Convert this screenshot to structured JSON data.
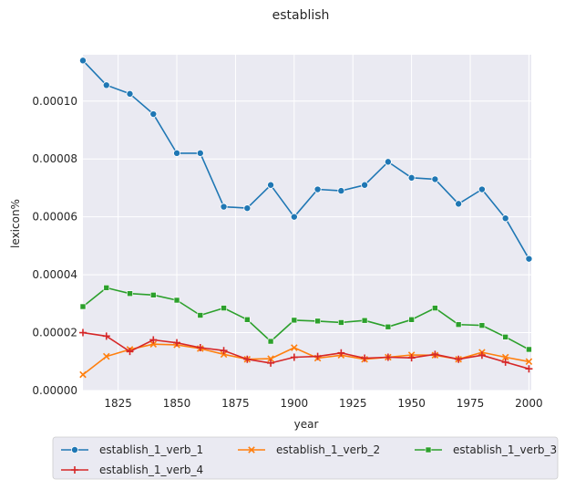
{
  "chart_data": {
    "type": "line",
    "title": "establish",
    "xlabel": "year",
    "ylabel": "lexicon%",
    "xlim": [
      1810,
      2001
    ],
    "ylim": [
      0,
      0.000116
    ],
    "xticks": [
      1825,
      1850,
      1875,
      1900,
      1925,
      1950,
      1975,
      2000
    ],
    "yticks": [
      0,
      2e-05,
      4e-05,
      6e-05,
      8e-05,
      0.0001
    ],
    "ytick_labels": [
      "0.00000",
      "0.00002",
      "0.00004",
      "0.00006",
      "0.00008",
      "0.00010"
    ],
    "x": [
      1810,
      1820,
      1830,
      1840,
      1850,
      1860,
      1870,
      1880,
      1890,
      1900,
      1910,
      1920,
      1930,
      1940,
      1950,
      1960,
      1970,
      1980,
      1990,
      2000
    ],
    "grid": true,
    "legend_position": "bottom",
    "series": [
      {
        "name": "establish_1_verb_1",
        "color": "#1f77b4",
        "marker": "circle",
        "values": [
          0.000114,
          0.0001055,
          0.0001025,
          9.55e-05,
          8.2e-05,
          8.2e-05,
          6.35e-05,
          6.3e-05,
          7.1e-05,
          6e-05,
          6.95e-05,
          6.9e-05,
          7.1e-05,
          7.9e-05,
          7.35e-05,
          7.3e-05,
          6.45e-05,
          6.95e-05,
          5.95e-05,
          4.55e-05
        ]
      },
      {
        "name": "establish_1_verb_2",
        "color": "#ff7f0e",
        "marker": "x",
        "values": [
          5.5e-06,
          1.18e-05,
          1.42e-05,
          1.6e-05,
          1.58e-05,
          1.45e-05,
          1.25e-05,
          1.08e-05,
          1.1e-05,
          1.48e-05,
          1.12e-05,
          1.22e-05,
          1.08e-05,
          1.15e-05,
          1.23e-05,
          1.22e-05,
          1.08e-05,
          1.32e-05,
          1.15e-05,
          1e-05
        ]
      },
      {
        "name": "establish_1_verb_3",
        "color": "#2ca02c",
        "marker": "square",
        "values": [
          2.9e-05,
          3.55e-05,
          3.35e-05,
          3.3e-05,
          3.12e-05,
          2.6e-05,
          2.85e-05,
          2.45e-05,
          1.7e-05,
          2.43e-05,
          2.4e-05,
          2.35e-05,
          2.42e-05,
          2.2e-05,
          2.45e-05,
          2.85e-05,
          2.28e-05,
          2.25e-05,
          1.85e-05,
          1.42e-05
        ]
      },
      {
        "name": "establish_1_verb_4",
        "color": "#d62728",
        "marker": "plus",
        "values": [
          2e-05,
          1.88e-05,
          1.35e-05,
          1.75e-05,
          1.65e-05,
          1.48e-05,
          1.38e-05,
          1.08e-05,
          9.5e-06,
          1.15e-05,
          1.18e-05,
          1.3e-05,
          1.12e-05,
          1.15e-05,
          1.13e-05,
          1.25e-05,
          1.08e-05,
          1.22e-05,
          9.8e-06,
          7.5e-06
        ]
      }
    ]
  }
}
